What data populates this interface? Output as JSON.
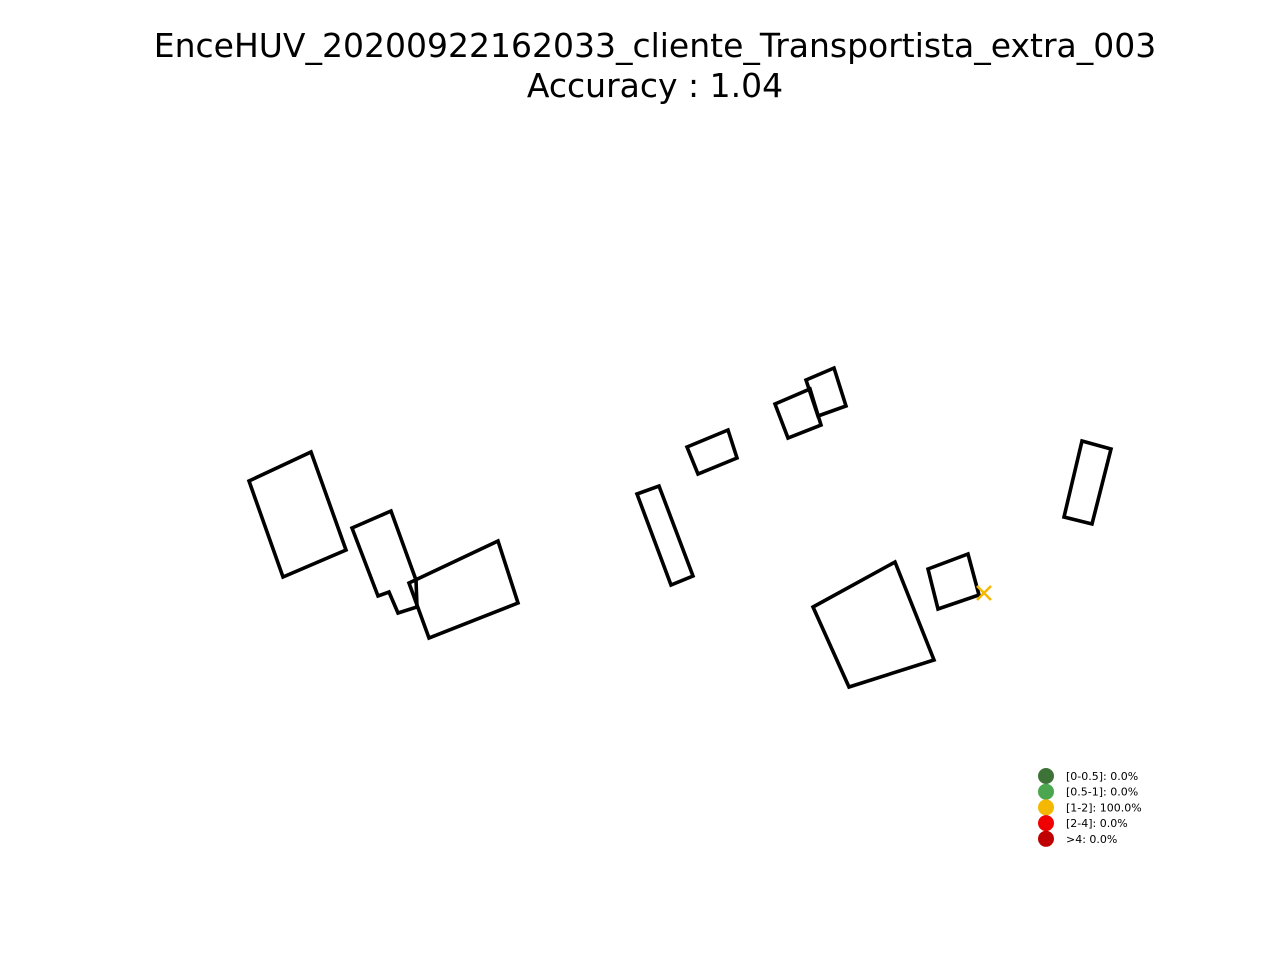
{
  "figure": {
    "title": "EnceHUV_20200922162033_cliente_Transportista_extra_003",
    "subtitle": "Accuracy : 1.04"
  },
  "markers": [
    {
      "name": "position-marker",
      "symbol": "x",
      "category": "[1-2]",
      "color": "#F5B800"
    }
  ],
  "legend": {
    "placement": "lower-right",
    "items": [
      {
        "label": "[0-0.5]: 0.0%",
        "color": "#3D7337"
      },
      {
        "label": "[0.5-1]: 0.0%",
        "color": "#4CA64F"
      },
      {
        "label": "[1-2]: 100.0%",
        "color": "#F5B800"
      },
      {
        "label": "[2-4]: 0.0%",
        "color": "#F00000"
      },
      {
        "label": ">4: 0.0%",
        "color": "#C00000"
      }
    ]
  },
  "colors": {
    "outline": "#000000",
    "background": "#FFFFFF"
  }
}
